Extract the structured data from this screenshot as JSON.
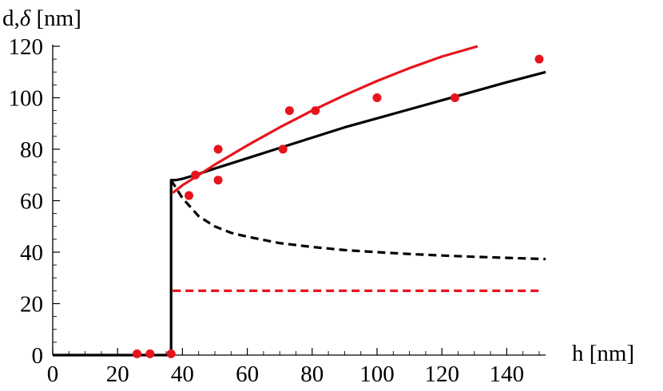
{
  "chart_data": {
    "type": "line",
    "title": "",
    "xlabel": "h [nm]",
    "ylabel": "d,δ [nm]",
    "ylabel_parts": {
      "main": "d,",
      "italic": "δ",
      "unit": " [nm]"
    },
    "xlim": [
      0,
      152
    ],
    "ylim": [
      0,
      120
    ],
    "x_ticks": [
      0,
      20,
      40,
      60,
      80,
      100,
      120,
      140
    ],
    "y_ticks": [
      0,
      20,
      40,
      60,
      80,
      100,
      120
    ],
    "grid": false,
    "colors": {
      "black": "#000000",
      "red": "#e8141c"
    },
    "series": [
      {
        "style": "solid",
        "color": "#000000",
        "x": [
          0,
          36.5,
          36.5,
          38,
          40,
          44,
          50,
          60,
          70,
          80,
          90,
          100,
          110,
          120,
          130,
          140,
          152
        ],
        "y": [
          0,
          0,
          68,
          68,
          68.5,
          70,
          72.5,
          76.5,
          80.5,
          84.5,
          88.5,
          92,
          95.5,
          99,
          102.5,
          106,
          110
        ]
      },
      {
        "style": "dashed",
        "color": "#000000",
        "x": [
          36.5,
          38,
          40,
          45,
          50,
          55,
          60,
          70,
          80,
          90,
          100,
          110,
          120,
          130,
          140,
          152
        ],
        "y": [
          68,
          65,
          61,
          54,
          50,
          47.5,
          46,
          43.5,
          42,
          40.8,
          40,
          39.3,
          38.7,
          38.2,
          37.8,
          37.3
        ]
      },
      {
        "style": "solid",
        "color": "#e8141c",
        "x": [
          37,
          40,
          45,
          50,
          60,
          70,
          80,
          90,
          100,
          110,
          120,
          131
        ],
        "y": [
          63,
          66,
          70,
          74,
          81.5,
          88.5,
          95,
          101,
          106.5,
          111.5,
          116,
          120
        ]
      },
      {
        "style": "dashed",
        "color": "#e8141c",
        "x": [
          37,
          150
        ],
        "y": [
          25,
          25
        ]
      }
    ],
    "points": {
      "color": "#e8141c",
      "x": [
        26,
        30,
        36.5,
        42,
        44,
        51,
        51,
        71,
        73,
        81,
        100,
        124,
        150
      ],
      "y": [
        0.5,
        0.5,
        0.5,
        62,
        70,
        68,
        80,
        80,
        95,
        95,
        100,
        100,
        115
      ]
    }
  }
}
